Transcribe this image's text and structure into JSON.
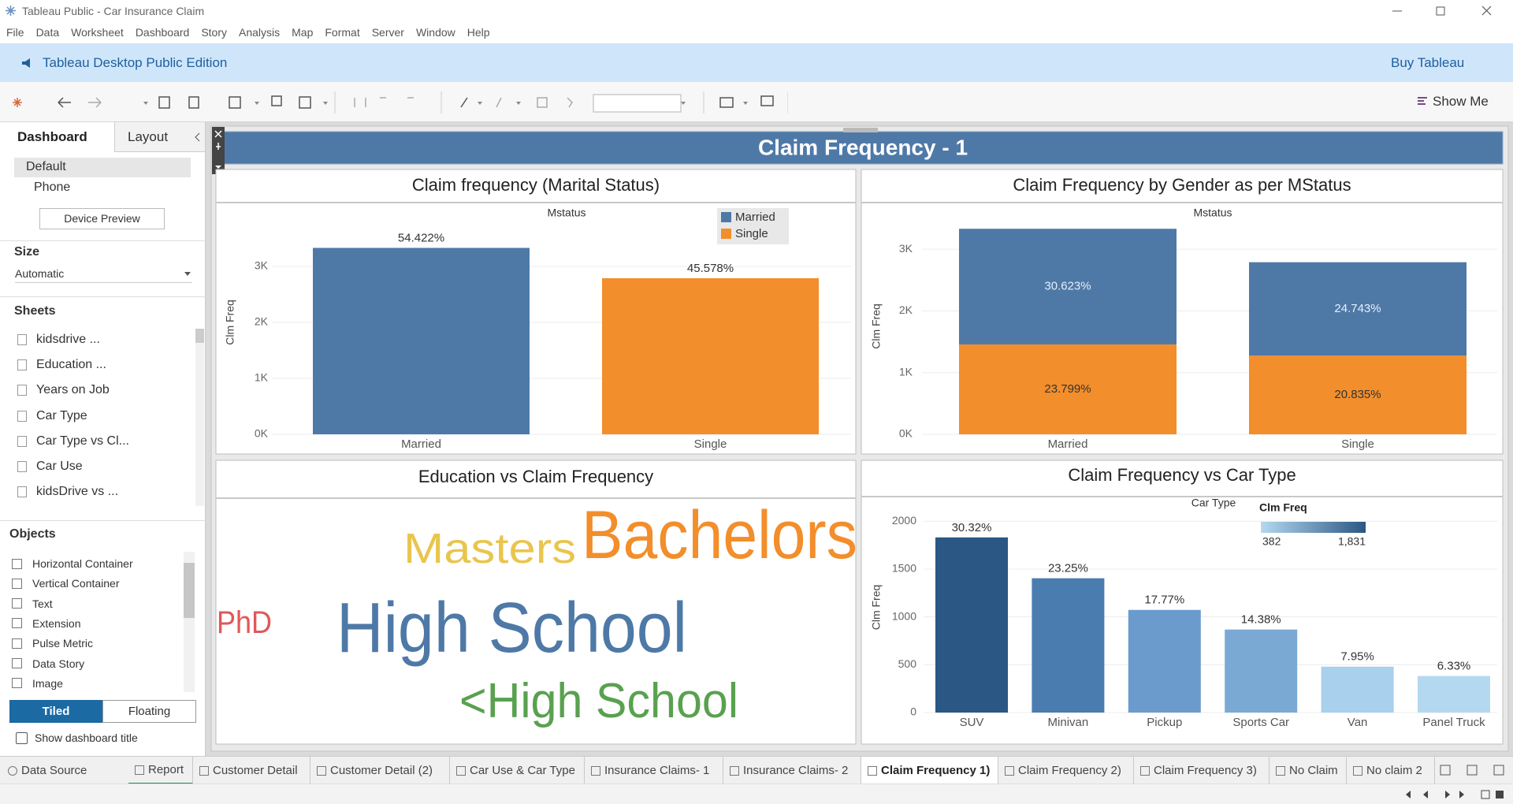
{
  "window": {
    "title": "Tableau Public - Car Insurance Claim"
  },
  "menu": [
    "File",
    "Data",
    "Worksheet",
    "Dashboard",
    "Story",
    "Analysis",
    "Map",
    "Format",
    "Server",
    "Window",
    "Help"
  ],
  "banner": {
    "edition": "Tableau Desktop Public Edition",
    "buy": "Buy Tableau"
  },
  "toolbar": {
    "show_me": "Show Me"
  },
  "sidebar": {
    "tabs": [
      "Dashboard",
      "Layout"
    ],
    "devices": [
      "Default",
      "Phone"
    ],
    "device_preview": "Device Preview",
    "size_heading": "Size",
    "size_value": "Automatic",
    "sheets_heading": "Sheets",
    "sheets": [
      "kidsdrive ...",
      "Education ...",
      "Years on Job",
      "Car Type",
      "Car Type vs Cl...",
      "Car Use",
      "kidsDrive vs ..."
    ],
    "objects_heading": "Objects",
    "objects": [
      "Horizontal Container",
      "Vertical Container",
      "Text",
      "Extension",
      "Pulse Metric",
      "Data Story",
      "Image"
    ],
    "layout_modes": [
      "Tiled",
      "Floating"
    ],
    "show_title": "Show dashboard title"
  },
  "dashboard_title": "Claim Frequency - 1",
  "chart_data": [
    {
      "type": "bar",
      "title": "Claim frequency (Marital Status)",
      "header": "Mstatus",
      "y_label": "Clm Freq",
      "categories": [
        "Married",
        "Single"
      ],
      "values": [
        3331,
        2789
      ],
      "colors": [
        "#4e79a7",
        "#f28e2b"
      ],
      "data_labels": [
        "54.422%",
        "45.578%"
      ],
      "legend": "top-right",
      "ylim": [
        0,
        4000
      ],
      "yticks": [
        {
          "value": 0,
          "label": "0K"
        },
        {
          "value": 1000,
          "label": "1K"
        },
        {
          "value": 2000,
          "label": "2K"
        },
        {
          "value": 3000,
          "label": "3K"
        }
      ],
      "grid": true
    },
    {
      "type": "stacked_bar",
      "title": "Claim Frequency by Gender as per MStatus",
      "header": "Mstatus",
      "y_label": "Clm Freq",
      "categories": [
        "Married",
        "Single"
      ],
      "series": [
        {
          "color": "#f28e2b",
          "values": [
            1457,
            1275
          ],
          "data_labels": [
            "23.799%",
            "20.835%"
          ]
        },
        {
          "color": "#4e79a7",
          "values": [
            1874,
            1514
          ],
          "data_labels": [
            "30.623%",
            "24.743%"
          ]
        }
      ],
      "ylim": [
        0,
        3500
      ],
      "yticks": [
        {
          "value": 0,
          "label": "0K"
        },
        {
          "value": 1000,
          "label": "1K"
        },
        {
          "value": 2000,
          "label": "2K"
        },
        {
          "value": 3000,
          "label": "3K"
        }
      ],
      "grid": true
    },
    {
      "type": "word_cloud",
      "title": "Education vs Claim Frequency",
      "words": [
        {
          "text": "Masters",
          "color": "#e9c54e"
        },
        {
          "text": "Bachelors",
          "color": "#f28e2b"
        },
        {
          "text": "PhD",
          "color": "#e15759"
        },
        {
          "text": "High School",
          "color": "#4e79a7"
        },
        {
          "text": "<High School",
          "color": "#59a14f"
        }
      ]
    },
    {
      "type": "bar",
      "title": "Claim Frequency vs Car Type",
      "header": "Car Type",
      "y_label": "Clm Freq",
      "categories": [
        "SUV",
        "Minivan",
        "Pickup",
        "Sports Car",
        "Van",
        "Panel Truck"
      ],
      "values": [
        1831,
        1404,
        1073,
        868,
        480,
        382
      ],
      "colors": [
        "#2a5783",
        "#4a7cb0",
        "#6a9bcc",
        "#7aaad4",
        "#a9d0ec",
        "#b4d8f0"
      ],
      "data_labels": [
        "30.32%",
        "23.25%",
        "17.77%",
        "14.38%",
        "7.95%",
        "6.33%"
      ],
      "color_legend": {
        "title": "Clm Freq",
        "min": 382,
        "max": {
          "value": 1831,
          "label": "1,831"
        },
        "color_range": [
          "#b4d8f0",
          "#2a5783"
        ]
      },
      "ylim": [
        0,
        2200
      ],
      "yticks": [
        0,
        500,
        1000,
        1500,
        2000
      ],
      "grid": true
    }
  ],
  "tabs": {
    "data_source": "Data Source",
    "sheets": [
      "Report",
      "Customer Detail",
      "Customer Detail (2)",
      "Car Use & Car Type",
      "Insurance Claims- 1",
      "Insurance Claims- 2",
      "Claim Frequency 1)",
      "Claim Frequency 2)",
      "Claim Frequency 3)",
      "No Claim",
      "No claim 2"
    ],
    "active": 6
  }
}
